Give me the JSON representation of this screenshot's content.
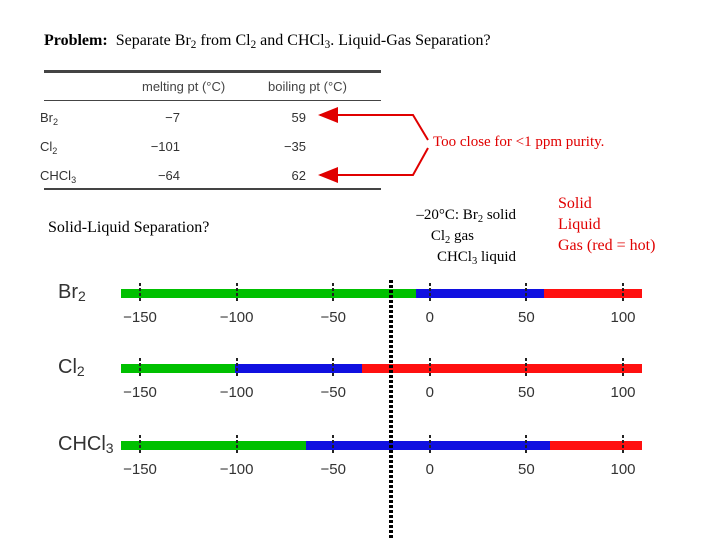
{
  "title": {
    "prefix": "Problem:",
    "parts": [
      "Separate Br",
      "2",
      " from Cl",
      "2",
      " and CHCl",
      "3",
      ".  Liquid-Gas Separation?"
    ]
  },
  "table": {
    "headers": [
      "melting pt (°C)",
      "boiling pt (°C)"
    ],
    "rows": [
      {
        "base": "Br",
        "sub": "2",
        "melting": "−7",
        "boiling": "59"
      },
      {
        "base": "Cl",
        "sub": "2",
        "melting": "−101",
        "boiling": "−35"
      },
      {
        "base": "CHCl",
        "sub": "3",
        "melting": "−64",
        "boiling": "62"
      }
    ]
  },
  "annotation": {
    "too_close": "Too close for <1 ppm purity."
  },
  "solid_liquid_question": "Solid-Liquid Separation?",
  "temp_block": {
    "line1": "–20°C: Br",
    "line1_sub": "2",
    "line1_end": " solid",
    "line2": "Cl",
    "line2_sub": "2",
    "line2_end": " gas",
    "line3": "CHCl",
    "line3_sub": "3",
    "line3_end": " liquid"
  },
  "legend": {
    "solid": "Solid",
    "liquid": "Liquid",
    "gas": "Gas (red = hot)"
  },
  "colors": {
    "solid": "#00c000",
    "liquid": "#1010e0",
    "gas": "#ff1010",
    "annotation": "#e00000"
  },
  "phase_lines": {
    "axis_min": -150,
    "axis_max": 100,
    "bar_start": -160,
    "bar_end": 110,
    "tick_values": [
      -150,
      -100,
      -50,
      0,
      50,
      100
    ],
    "tick_labels": [
      "−150",
      "−100",
      "−50",
      "0",
      "50",
      "100"
    ],
    "cut_temperature": -20,
    "compounds": [
      {
        "base": "Br",
        "sub": "2",
        "melting": -7,
        "boiling": 59
      },
      {
        "base": "Cl",
        "sub": "2",
        "melting": -101,
        "boiling": -35
      },
      {
        "base": "CHCl",
        "sub": "3",
        "melting": -64,
        "boiling": 62
      }
    ]
  }
}
